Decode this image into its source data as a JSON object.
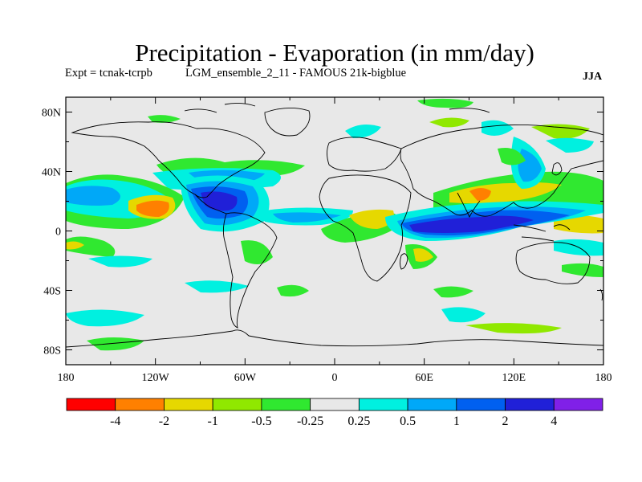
{
  "title": "Precipitation - Evaporation (in mm/day)",
  "experiment_label": "Expt = tcnak-tcrpb",
  "run_label": "LGM_ensemble_2_11 - FAMOUS 21k-bigblue",
  "season": "JJA",
  "map": {
    "lat_ticks": [
      {
        "value": 80,
        "label": "80N"
      },
      {
        "value": 40,
        "label": "40N"
      },
      {
        "value": 0,
        "label": "0"
      },
      {
        "value": -40,
        "label": "40S"
      },
      {
        "value": -80,
        "label": "80S"
      }
    ],
    "lon_ticks": [
      {
        "value": -180,
        "label": "180"
      },
      {
        "value": -120,
        "label": "120W"
      },
      {
        "value": -60,
        "label": "60W"
      },
      {
        "value": 0,
        "label": "0"
      },
      {
        "value": 60,
        "label": "60E"
      },
      {
        "value": 120,
        "label": "120E"
      },
      {
        "value": 180,
        "label": "180"
      }
    ],
    "lat_range": [
      -90,
      90
    ],
    "lon_range": [
      -180,
      180
    ]
  },
  "colorbar": {
    "colors": [
      "#ff0000",
      "#ff8000",
      "#e6d800",
      "#90e800",
      "#30e830",
      "#e8e8e8",
      "#00f0e0",
      "#00a8f8",
      "#0060f0",
      "#2020d8",
      "#8020e8"
    ],
    "labels": [
      "-4",
      "-2",
      "-1",
      "-0.5",
      "-0.25",
      "0.25",
      "0.5",
      "1",
      "2",
      "4"
    ]
  },
  "fill_colors": {
    "background": "#e8e8e8",
    "coast": "#000000"
  }
}
